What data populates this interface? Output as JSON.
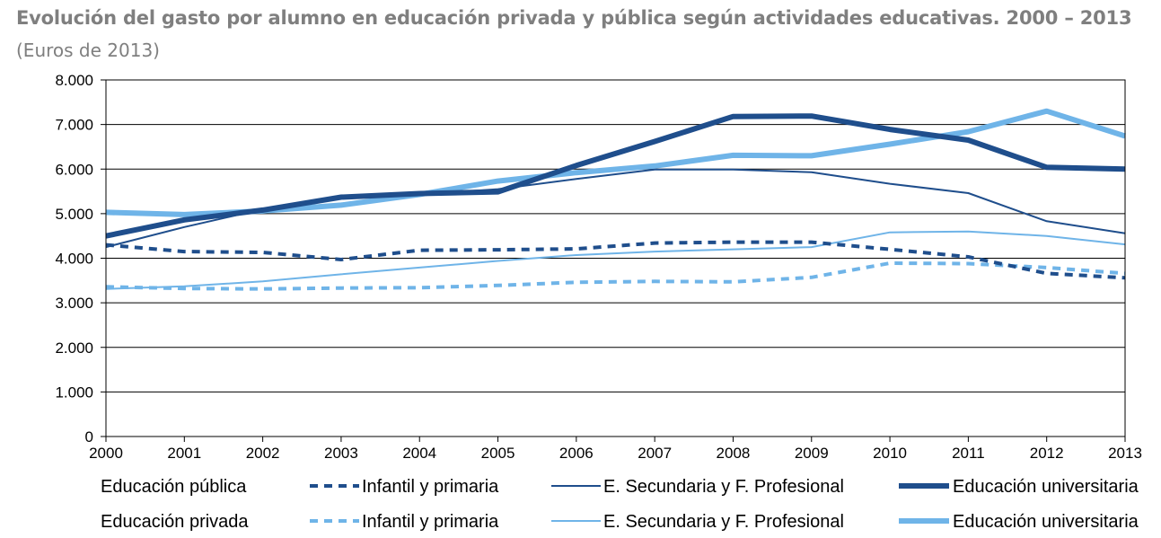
{
  "chart_data": {
    "type": "line",
    "title": "Evolución del gasto por alumno en educación privada y pública según actividades educativas. 2000 – 2013",
    "subtitle": "(Euros de 2013)",
    "xlabel": "",
    "ylabel": "",
    "ylim": [
      0,
      8000
    ],
    "y_ticks": [
      0,
      1000,
      2000,
      3000,
      4000,
      5000,
      6000,
      7000,
      8000
    ],
    "y_tick_labels": [
      "0",
      "1.000",
      "2.000",
      "3.000",
      "4.000",
      "5.000",
      "6.000",
      "7.000",
      "8.000"
    ],
    "categories": [
      "2000",
      "2001",
      "2002",
      "2003",
      "2004",
      "2005",
      "2006",
      "2007",
      "2008",
      "2009",
      "2010",
      "2011",
      "2012",
      "2013"
    ],
    "grid": "horizontal",
    "legend": {
      "row_labels": [
        "Educación pública",
        "Educación privada"
      ],
      "placement": "bottom"
    },
    "series": [
      {
        "name": "Infantil y primaria",
        "group": "Educación pública",
        "color": "#1f4e8c",
        "style": "dashed-thick",
        "values": [
          4300,
          4150,
          4130,
          3970,
          4180,
          4190,
          4210,
          4340,
          4360,
          4360,
          4200,
          4030,
          3660,
          3560
        ]
      },
      {
        "name": "E. Secundaria y F. Profesional",
        "group": "Educación pública",
        "color": "#1f4e8c",
        "style": "solid-thin",
        "values": [
          4250,
          4700,
          5100,
          5380,
          5430,
          5550,
          5780,
          5990,
          5990,
          5930,
          5670,
          5460,
          4830,
          4560
        ]
      },
      {
        "name": "Educación universitaria",
        "group": "Educación pública",
        "color": "#1f4e8c",
        "style": "solid-thick",
        "values": [
          4500,
          4860,
          5080,
          5370,
          5450,
          5490,
          6080,
          6620,
          7180,
          7190,
          6890,
          6650,
          6040,
          6000
        ]
      },
      {
        "name": "Infantil y primaria",
        "group": "Educación privada",
        "color": "#6fb4e8",
        "style": "dashed-thick",
        "values": [
          3360,
          3320,
          3310,
          3330,
          3340,
          3390,
          3460,
          3480,
          3470,
          3570,
          3890,
          3880,
          3790,
          3660
        ]
      },
      {
        "name": "E. Secundaria y F. Profesional",
        "group": "Educación privada",
        "color": "#6fb4e8",
        "style": "solid-thin",
        "values": [
          3310,
          3370,
          3480,
          3640,
          3790,
          3940,
          4070,
          4150,
          4200,
          4250,
          4580,
          4600,
          4500,
          4310
        ]
      },
      {
        "name": "Educación universitaria",
        "group": "Educación privada",
        "color": "#6fb4e8",
        "style": "solid-thick",
        "values": [
          5030,
          4980,
          5060,
          5190,
          5430,
          5730,
          5920,
          6070,
          6310,
          6300,
          6560,
          6840,
          7300,
          6740
        ]
      }
    ]
  }
}
